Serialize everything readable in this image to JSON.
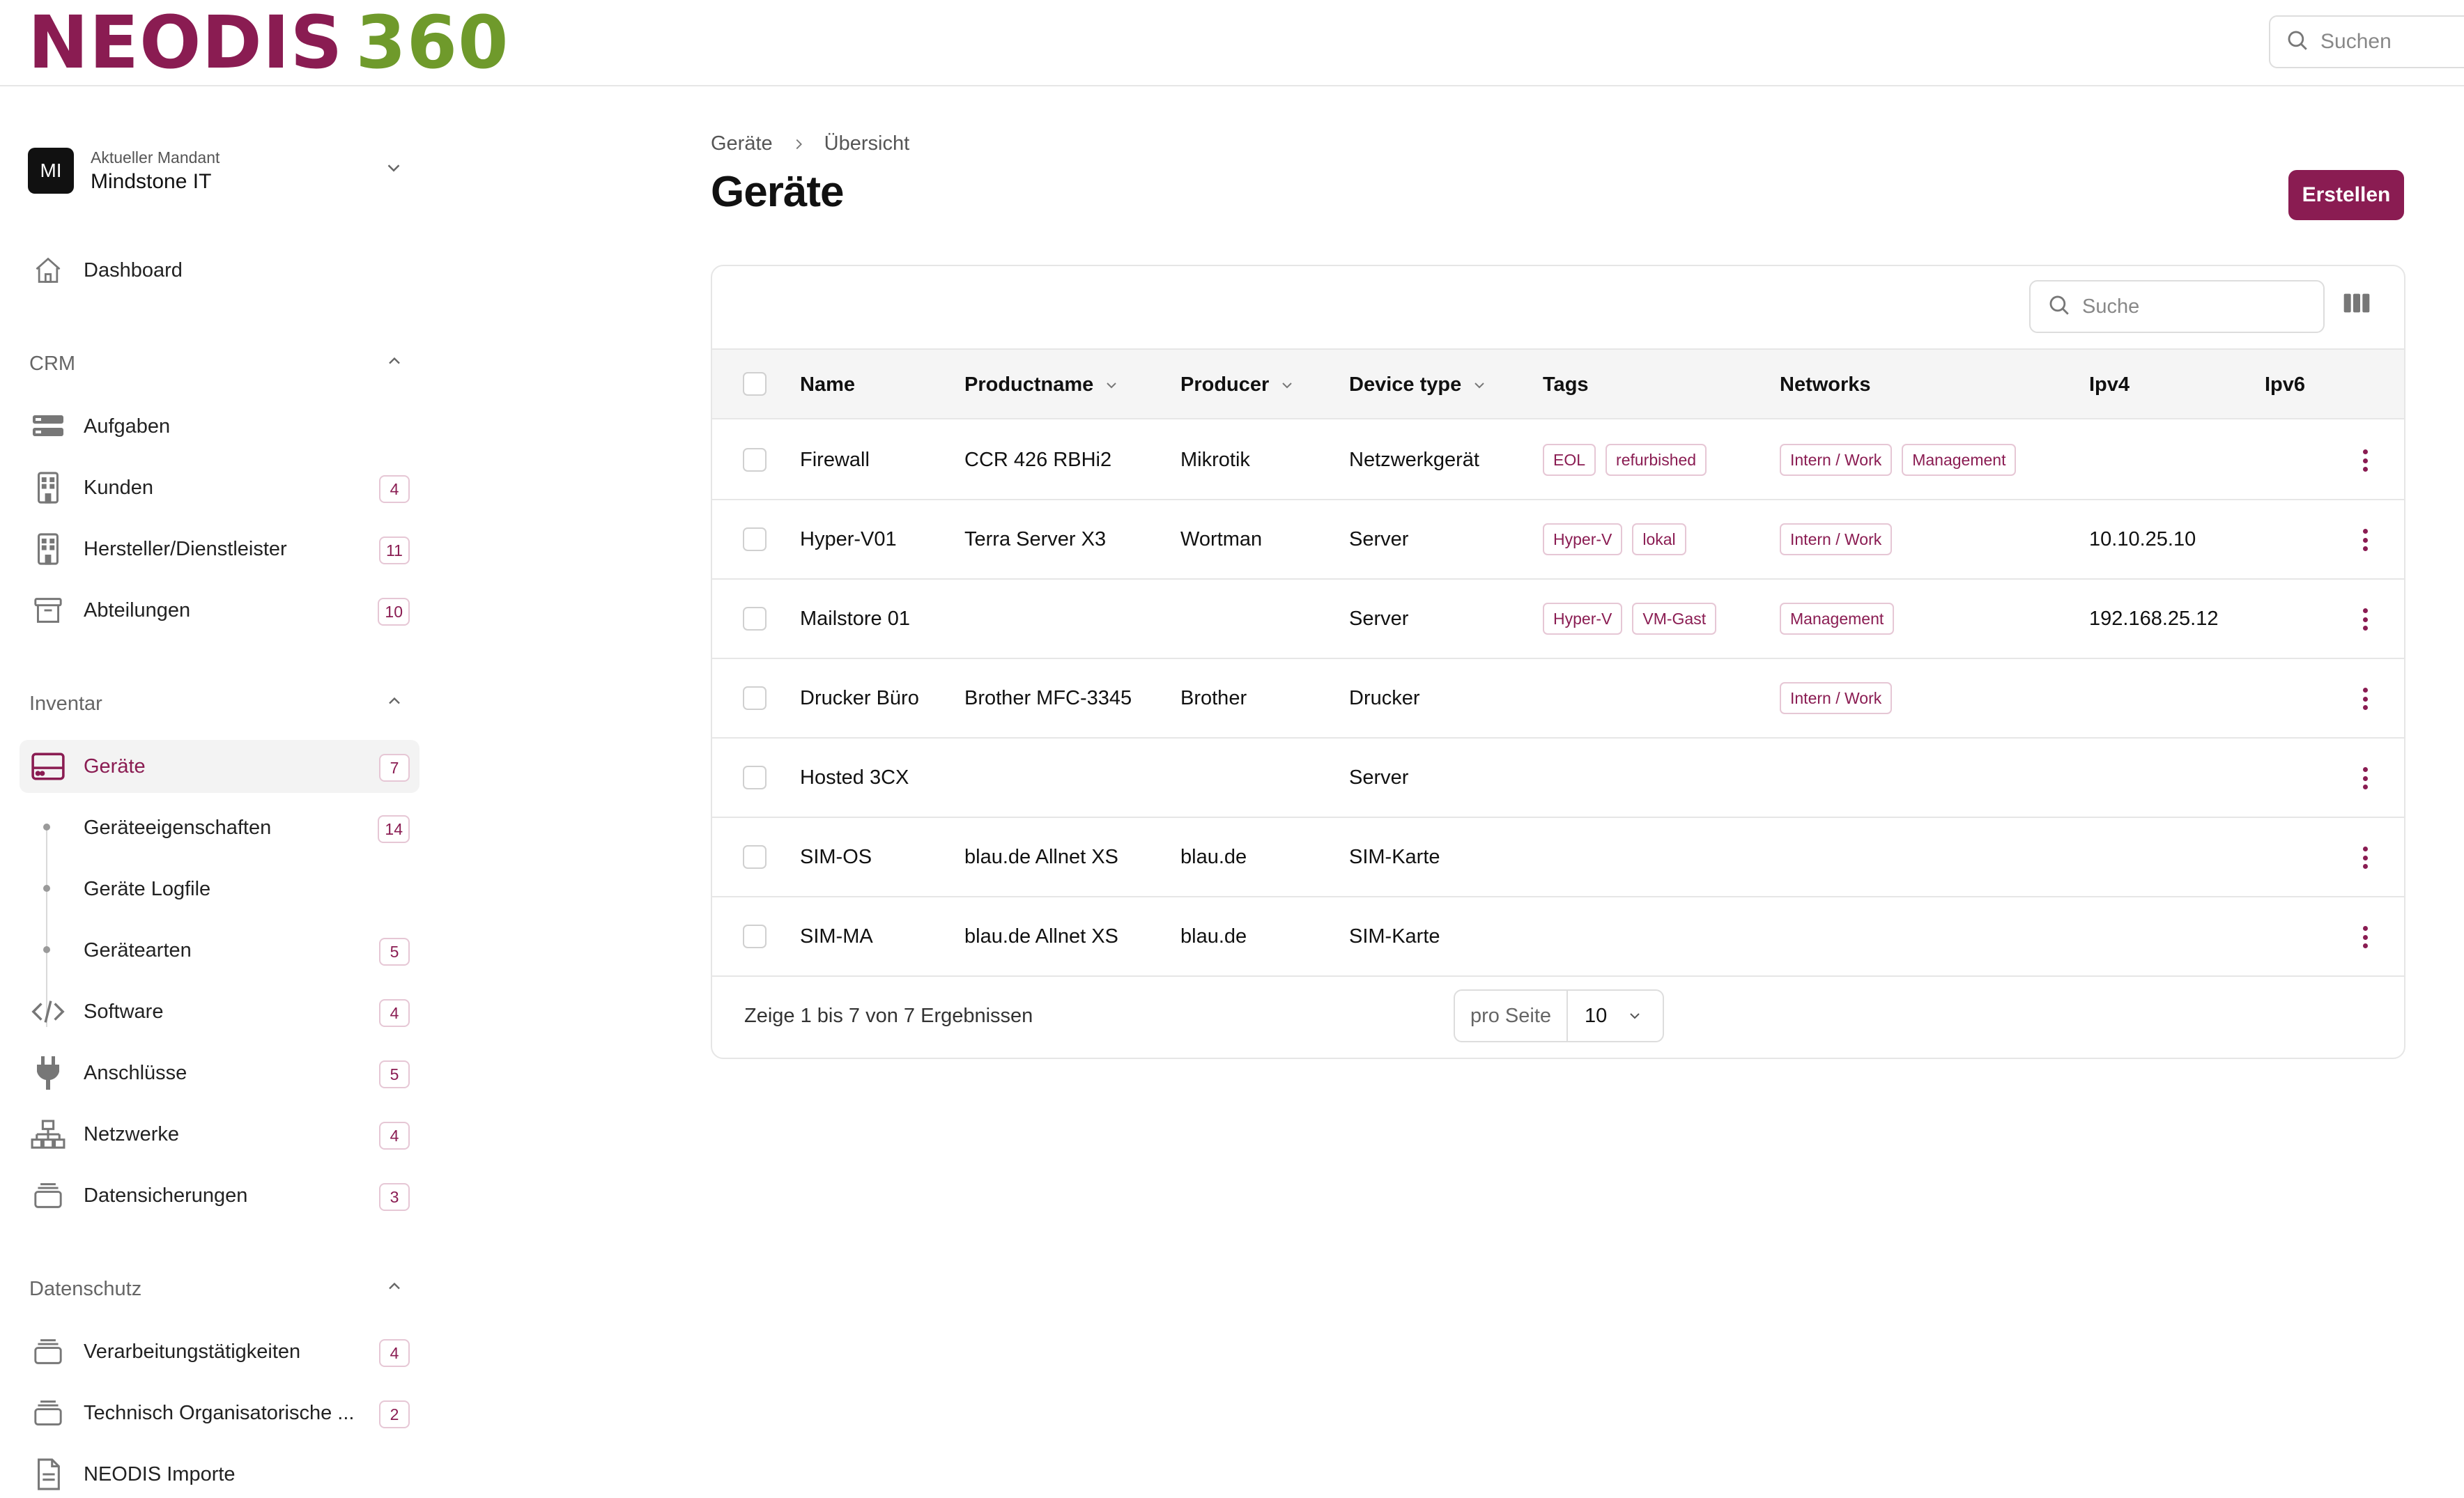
{
  "brand": {
    "logo_word": "NEODIS",
    "logo_number": "360",
    "primary_color": "#8a1c52",
    "secondary_color": "#6f9a2b"
  },
  "top_search": {
    "placeholder": "Suchen"
  },
  "tenant": {
    "avatar": "MI",
    "caption": "Aktueller Mandant",
    "name": "Mindstone IT"
  },
  "sidebar": {
    "dashboard": {
      "label": "Dashboard",
      "icon": "home-icon"
    },
    "crm": {
      "title": "CRM",
      "items": [
        {
          "label": "Aufgaben",
          "icon": "tasks-icon",
          "badge": ""
        },
        {
          "label": "Kunden",
          "icon": "building-icon",
          "badge": "4"
        },
        {
          "label": "Hersteller/Dienstleister",
          "icon": "building-icon",
          "badge": "11"
        },
        {
          "label": "Abteilungen",
          "icon": "archive-icon",
          "badge": "10"
        }
      ]
    },
    "inventar": {
      "title": "Inventar",
      "items": [
        {
          "label": "Geräte",
          "icon": "server-icon",
          "badge": "7",
          "active": true
        },
        {
          "label": "Geräteeigenschaften",
          "badge": "14"
        },
        {
          "label": "Geräte Logfile",
          "badge": ""
        },
        {
          "label": "Gerätearten",
          "badge": "5"
        },
        {
          "label": "Software",
          "icon": "code-icon",
          "badge": "4"
        },
        {
          "label": "Anschlüsse",
          "icon": "plug-icon",
          "badge": "5"
        },
        {
          "label": "Netzwerke",
          "icon": "network-icon",
          "badge": "4"
        },
        {
          "label": "Datensicherungen",
          "icon": "stack-icon",
          "badge": "3"
        }
      ]
    },
    "datenschutz": {
      "title": "Datenschutz",
      "items": [
        {
          "label": "Verarbeitungstätigkeiten",
          "icon": "stack-icon",
          "badge": "4"
        },
        {
          "label": "Technisch Organisatorische ...",
          "icon": "stack-icon",
          "badge": "2"
        },
        {
          "label": "NEODIS Importe",
          "icon": "document-icon",
          "badge": ""
        }
      ]
    }
  },
  "breadcrumb": [
    "Geräte",
    "Übersicht"
  ],
  "page_title": "Geräte",
  "create_button": "Erstellen",
  "table": {
    "search_placeholder": "Suche",
    "columns": [
      "Name",
      "Productname",
      "Producer",
      "Device type",
      "Tags",
      "Networks",
      "Ipv4",
      "Ipv6"
    ],
    "rows": [
      {
        "name": "Firewall",
        "product": "CCR 426 RBHi2",
        "producer": "Mikrotik",
        "type": "Netzwerkgerät",
        "tags": [
          "EOL",
          "refurbished"
        ],
        "networks": [
          "Intern / Work",
          "Management"
        ],
        "ipv4": "",
        "ipv6": ""
      },
      {
        "name": "Hyper-V01",
        "product": "Terra Server X3",
        "producer": "Wortman",
        "type": "Server",
        "tags": [
          "Hyper-V",
          "lokal"
        ],
        "networks": [
          "Intern / Work"
        ],
        "ipv4": "10.10.25.10",
        "ipv6": ""
      },
      {
        "name": "Mailstore 01",
        "product": "",
        "producer": "",
        "type": "Server",
        "tags": [
          "Hyper-V",
          "VM-Gast"
        ],
        "networks": [
          "Management"
        ],
        "ipv4": "192.168.25.12",
        "ipv6": ""
      },
      {
        "name": "Drucker Büro",
        "product": "Brother MFC-3345",
        "producer": "Brother",
        "type": "Drucker",
        "tags": [],
        "networks": [
          "Intern / Work"
        ],
        "ipv4": "",
        "ipv6": ""
      },
      {
        "name": "Hosted 3CX",
        "product": "",
        "producer": "",
        "type": "Server",
        "tags": [],
        "networks": [],
        "ipv4": "",
        "ipv6": ""
      },
      {
        "name": "SIM-OS",
        "product": "blau.de Allnet XS",
        "producer": "blau.de",
        "type": "SIM-Karte",
        "tags": [],
        "networks": [],
        "ipv4": "",
        "ipv6": ""
      },
      {
        "name": "SIM-MA",
        "product": "blau.de Allnet XS",
        "producer": "blau.de",
        "type": "SIM-Karte",
        "tags": [],
        "networks": [],
        "ipv4": "",
        "ipv6": ""
      }
    ],
    "footer_text": "Zeige 1 bis 7 von 7 Ergebnissen",
    "per_page_label": "pro Seite",
    "per_page_value": "10"
  }
}
